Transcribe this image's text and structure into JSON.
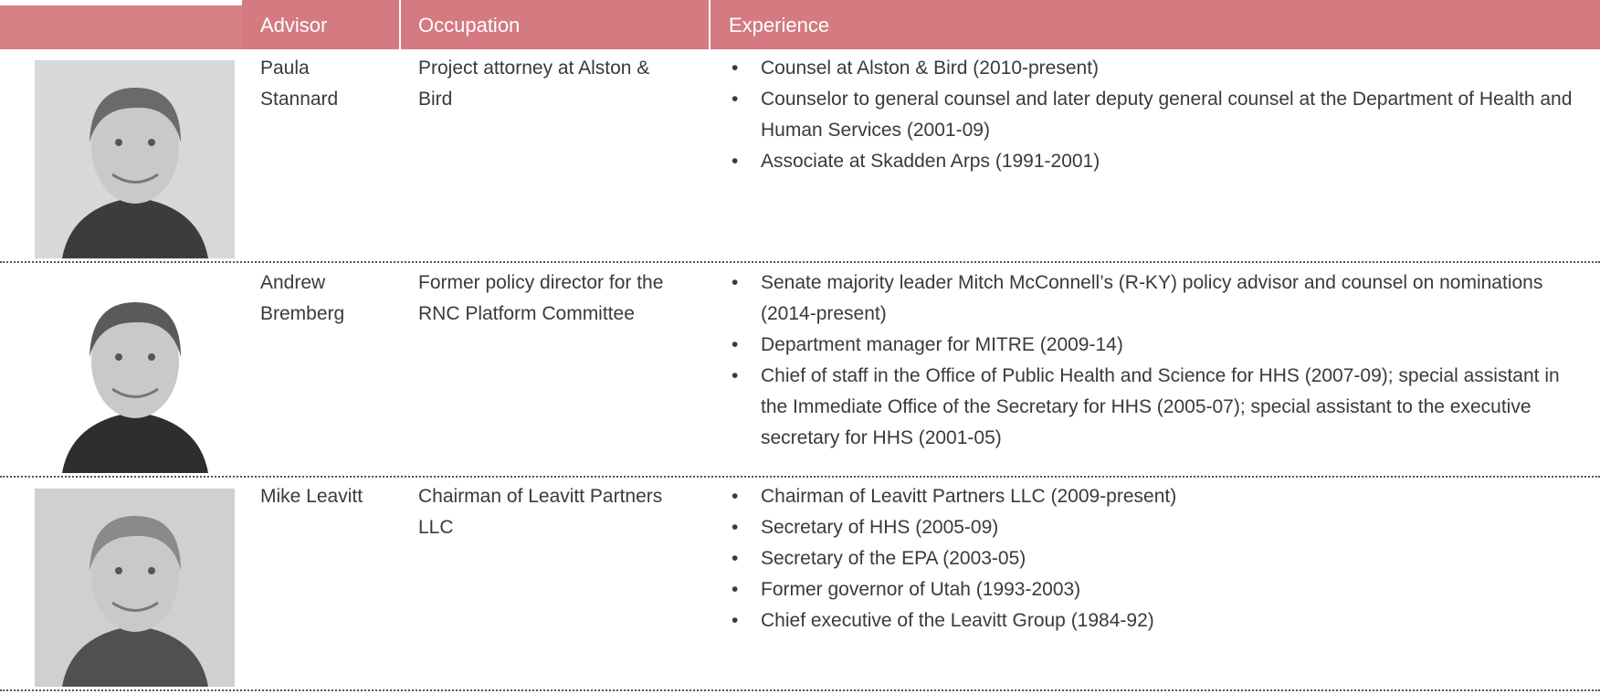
{
  "table": {
    "header": [
      "Advisor",
      "Occupation",
      "Experience"
    ],
    "rows": [
      {
        "advisor": "Paula Stannard",
        "occupation": "Project attorney at Alston & Bird",
        "experience": [
          "Counsel at Alston & Bird (2010-present)",
          "Counselor to general counsel and later deputy general counsel at the Department of Health and Human Services (2001-09)",
          "Associate at Skadden Arps (1991-2001)"
        ]
      },
      {
        "advisor": "Andrew Bremberg",
        "occupation": "Former policy director for the RNC Platform Committee",
        "experience": [
          "Senate majority leader Mitch McConnell’s (R-KY) policy advisor and counsel on nominations (2014-present)",
          "Department manager for MITRE (2009-14)",
          "Chief of staff in the Office of Public Health and Science for HHS (2007-09); special assistant in the Immediate Office of the Secretary for HHS (2005-07); special assistant to the executive secretary for HHS (2001-05)"
        ]
      },
      {
        "advisor": "Mike Leavitt",
        "occupation": "Chairman of Leavitt Partners LLC",
        "experience": [
          "Chairman of Leavitt Partners LLC (2009-present)",
          "Secretary of HHS (2005-09)",
          "Secretary of the EPA (2003-05)",
          "Former governor of Utah (1993-2003)",
          "Chief executive of the Leavitt Group (1984-92)"
        ]
      }
    ]
  }
}
